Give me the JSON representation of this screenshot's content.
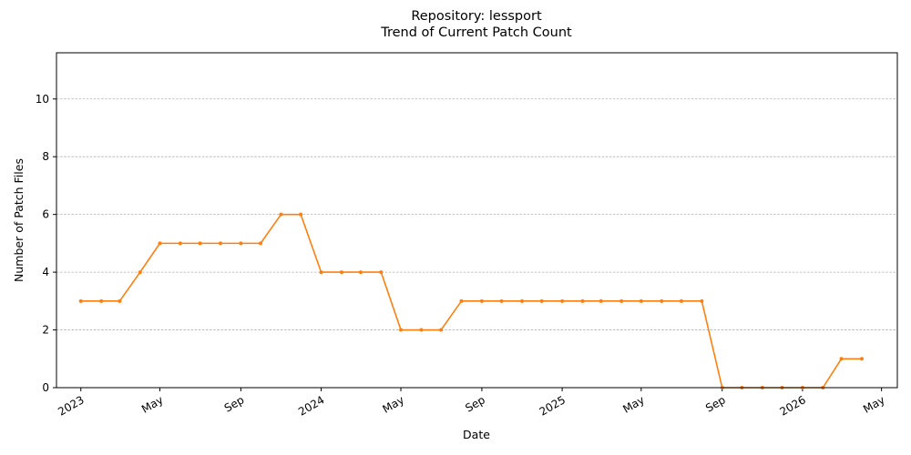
{
  "chart_data": {
    "type": "line",
    "title": "Repository: lessport",
    "subtitle": "Trend of Current Patch Count",
    "xlabel": "Date",
    "ylabel": "Number of Patch Files",
    "ylim": [
      0,
      11.6
    ],
    "xlim": [
      "2022-11-25",
      "2026-05-25"
    ],
    "yticks": [
      0,
      2,
      4,
      6,
      8,
      10
    ],
    "xticks": [
      {
        "date": "2023-01-01",
        "label": "2023"
      },
      {
        "date": "2023-05-01",
        "label": "May"
      },
      {
        "date": "2023-09-01",
        "label": "Sep"
      },
      {
        "date": "2024-01-01",
        "label": "2024"
      },
      {
        "date": "2024-05-01",
        "label": "May"
      },
      {
        "date": "2024-09-01",
        "label": "Sep"
      },
      {
        "date": "2025-01-01",
        "label": "2025"
      },
      {
        "date": "2025-05-01",
        "label": "May"
      },
      {
        "date": "2025-09-01",
        "label": "Sep"
      },
      {
        "date": "2026-01-01",
        "label": "2026"
      },
      {
        "date": "2026-05-01",
        "label": "May"
      }
    ],
    "grid": "y",
    "color": "#ff7f0e",
    "series": [
      {
        "x": [
          "2023-01-01",
          "2023-02-01",
          "2023-03-01",
          "2023-04-01",
          "2023-05-01",
          "2023-06-01",
          "2023-07-01",
          "2023-08-01",
          "2023-09-01",
          "2023-10-01",
          "2023-11-01",
          "2023-12-01",
          "2024-01-01",
          "2024-02-01",
          "2024-03-01",
          "2024-04-01",
          "2024-05-01",
          "2024-06-01",
          "2024-07-01",
          "2024-08-01",
          "2024-09-01",
          "2024-10-01",
          "2024-11-01",
          "2024-12-01",
          "2025-01-01",
          "2025-02-01",
          "2025-03-01",
          "2025-04-01",
          "2025-05-01",
          "2025-06-01",
          "2025-07-01",
          "2025-08-01",
          "2025-09-01",
          "2025-10-01",
          "2025-11-01",
          "2025-12-01",
          "2026-01-01",
          "2026-02-01",
          "2026-03-01",
          "2026-04-01"
        ],
        "y": [
          3,
          3,
          3,
          4,
          5,
          5,
          5,
          5,
          5,
          5,
          6,
          6,
          4,
          4,
          4,
          4,
          2,
          2,
          2,
          3,
          3,
          3,
          3,
          3,
          3,
          3,
          3,
          3,
          3,
          3,
          3,
          3,
          0,
          0,
          0,
          0,
          0,
          0,
          1,
          1
        ]
      }
    ]
  }
}
